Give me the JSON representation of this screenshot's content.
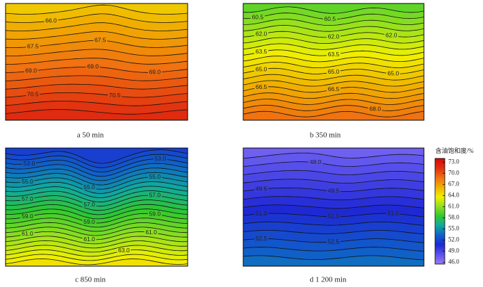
{
  "chart_data": {
    "type": "contour",
    "panels": [
      {
        "caption": "a  50 min",
        "levels": [
          65.5,
          66.0,
          66.5,
          67.0,
          67.5,
          68.0,
          68.5,
          69.0,
          69.5,
          70.0,
          70.5,
          71.0,
          71.5
        ],
        "labels": [
          {
            "value": 66.0,
            "label": "66.0"
          },
          {
            "value": 67.5,
            "label": "67.5"
          },
          {
            "value": 67.5,
            "label": "67.5"
          },
          {
            "value": 69.0,
            "label": "69.0"
          },
          {
            "value": 69.0,
            "label": "69.0"
          },
          {
            "value": 69.0,
            "label": "69.0"
          },
          {
            "value": 70.5,
            "label": "70.5"
          },
          {
            "value": 70.5,
            "label": "70.5"
          }
        ]
      },
      {
        "caption": "b  350 min",
        "levels": [
          60.0,
          60.5,
          61.0,
          61.5,
          62.0,
          62.5,
          63.0,
          63.5,
          64.0,
          64.5,
          65.0,
          65.5,
          66.0,
          66.5,
          67.0,
          67.5,
          68.0,
          68.5
        ],
        "labels": [
          {
            "value": 60.5,
            "label": "60.5"
          },
          {
            "value": 60.5,
            "label": "60.5"
          },
          {
            "value": 62.0,
            "label": "62.0"
          },
          {
            "value": 62.0,
            "label": "62.0"
          },
          {
            "value": 62.0,
            "label": "62.0"
          },
          {
            "value": 63.5,
            "label": "63.5"
          },
          {
            "value": 63.5,
            "label": "63.5"
          },
          {
            "value": 65.0,
            "label": "65.0"
          },
          {
            "value": 65.0,
            "label": "65.0"
          },
          {
            "value": 65.0,
            "label": "65.0"
          },
          {
            "value": 66.5,
            "label": "66.5"
          },
          {
            "value": 66.5,
            "label": "66.5"
          },
          {
            "value": 68.0,
            "label": "68.0"
          }
        ]
      },
      {
        "caption": "c  850 min",
        "levels": [
          52.0,
          52.5,
          53.0,
          53.5,
          54.0,
          54.5,
          55.0,
          55.5,
          56.0,
          56.5,
          57.0,
          57.5,
          58.0,
          58.5,
          59.0,
          59.5,
          60.0,
          60.5,
          61.0,
          61.5,
          62.0,
          62.5,
          63.0,
          63.5,
          64.0
        ],
        "labels": [
          {
            "value": 53.0,
            "label": "53.0"
          },
          {
            "value": 53.0,
            "label": "53.0"
          },
          {
            "value": 55.0,
            "label": "55.0"
          },
          {
            "value": 55.0,
            "label": "55.0"
          },
          {
            "value": 55.0,
            "label": "55.0"
          },
          {
            "value": 57.0,
            "label": "57.0"
          },
          {
            "value": 57.0,
            "label": "57.0"
          },
          {
            "value": 57.0,
            "label": "57.0"
          },
          {
            "value": 59.0,
            "label": "59.0"
          },
          {
            "value": 59.0,
            "label": "59.0"
          },
          {
            "value": 59.0,
            "label": "59.0"
          },
          {
            "value": 61.0,
            "label": "61.0"
          },
          {
            "value": 61.0,
            "label": "61.0"
          },
          {
            "value": 61.0,
            "label": "61.0"
          },
          {
            "value": 63.0,
            "label": "63.0"
          }
        ]
      },
      {
        "caption": "d  1 200 min",
        "levels": [
          47.5,
          48.0,
          48.5,
          49.0,
          49.5,
          50.0,
          50.5,
          51.0,
          51.5,
          52.0,
          52.5,
          53.0,
          53.5
        ],
        "labels": [
          {
            "value": 48.0,
            "label": "48.0"
          },
          {
            "value": 49.5,
            "label": "49.5"
          },
          {
            "value": 49.5,
            "label": "49.5"
          },
          {
            "value": 51.0,
            "label": "51.0"
          },
          {
            "value": 51.0,
            "label": "51.0"
          },
          {
            "value": 51.0,
            "label": "51.0"
          },
          {
            "value": 52.5,
            "label": "52.5"
          },
          {
            "value": 52.5,
            "label": "52.5"
          }
        ]
      }
    ],
    "colorbar": {
      "title": "含油饱和度/%",
      "ylim": [
        45.5,
        74
      ],
      "yticks": [
        {
          "value": 73,
          "label": "73.0"
        },
        {
          "value": 70,
          "label": "70.0"
        },
        {
          "value": 67,
          "label": "67.0"
        },
        {
          "value": 64,
          "label": "64.0"
        },
        {
          "value": 61,
          "label": "61.0"
        },
        {
          "value": 58,
          "label": "58.0"
        },
        {
          "value": 55,
          "label": "55.0"
        },
        {
          "value": 52,
          "label": "52.0"
        },
        {
          "value": 49,
          "label": "49.0"
        },
        {
          "value": 46,
          "label": "46.0"
        }
      ],
      "colormap": [
        "#9a7cf4",
        "#5a52ec",
        "#1e28d4",
        "#1060c8",
        "#10a8a0",
        "#30c830",
        "#90e020",
        "#f0f000",
        "#f0b000",
        "#f07010",
        "#e03010",
        "#d80808"
      ]
    }
  }
}
